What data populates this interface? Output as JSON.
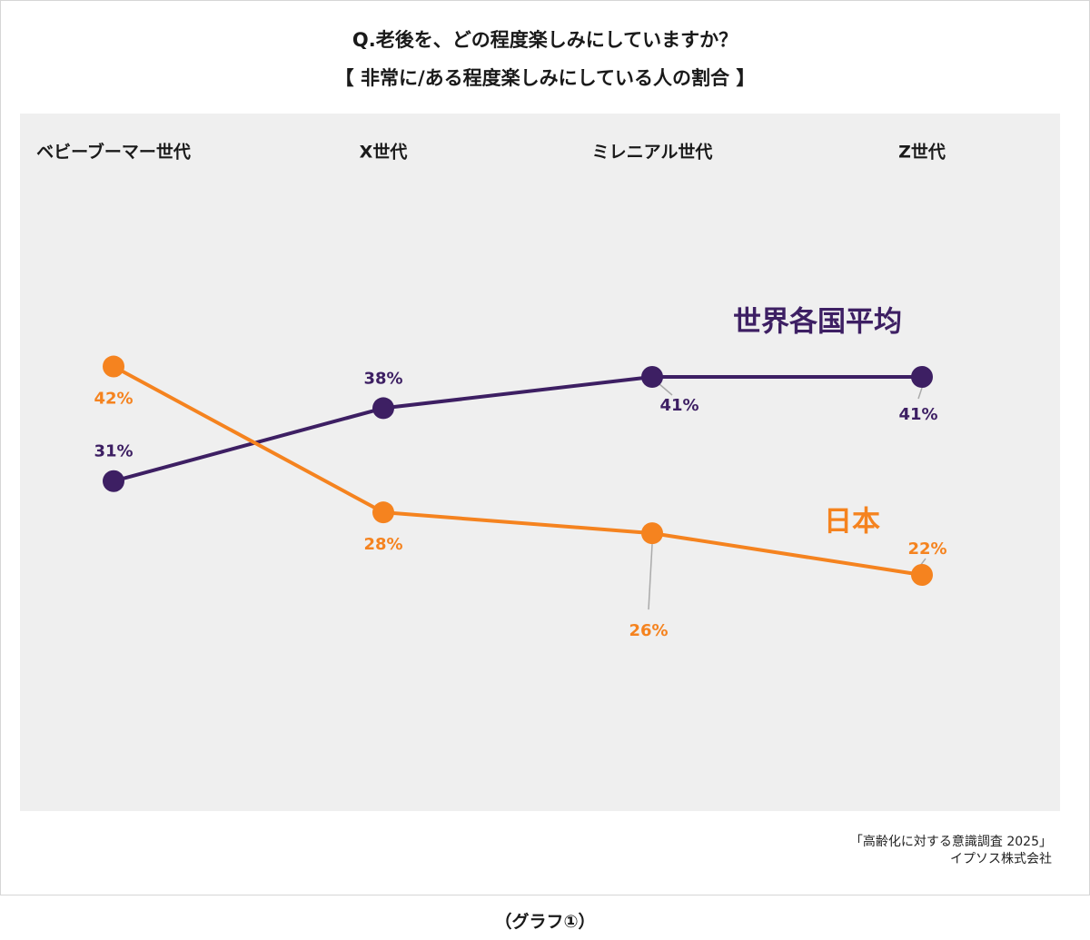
{
  "chart_data": {
    "type": "line",
    "title": "Q.老後を、どの程度楽しみにしていますか？",
    "subtitle": "【 非常に/ある程度楽しみにしている人の割合 】",
    "categories": [
      "ベビーブーマー世代",
      "X世代",
      "ミレニアル世代",
      "Z世代"
    ],
    "ylim": [
      0,
      70
    ],
    "unit": "%",
    "series": [
      {
        "name": "世界各国平均",
        "color": "#3d1f63",
        "values": [
          31,
          38,
          41,
          41
        ],
        "labels": [
          "31%",
          "38%",
          "41%",
          "41%"
        ]
      },
      {
        "name": "日本",
        "color": "#f5831f",
        "values": [
          42,
          28,
          26,
          22
        ],
        "labels": [
          "42%",
          "28%",
          "26%",
          "22%"
        ]
      }
    ],
    "leader_line_color": "#aaaaaa"
  },
  "source": {
    "line1": "「高齢化に対する意識調査 2025」",
    "line2": "イプソス株式会社"
  },
  "caption": "（グラフ①）"
}
